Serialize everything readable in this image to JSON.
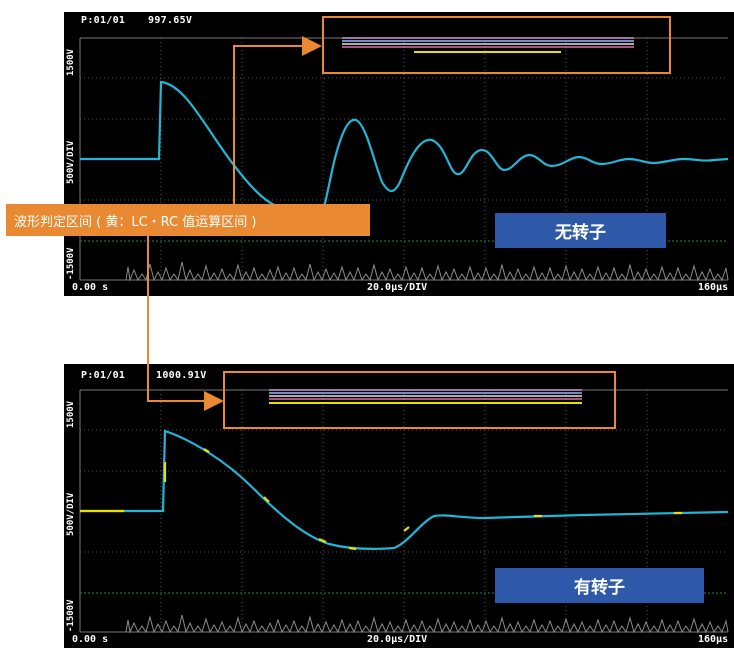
{
  "scope_top": {
    "page": "P:01/01",
    "voltage": "997.65V",
    "scale_top": "1500V",
    "scale_mid": "500V/DIV",
    "scale_bottom": "-1500V",
    "time_start": "0.00 s",
    "time_div": "20.0µs/DIV",
    "time_end": "160µs",
    "badge": "无转子"
  },
  "scope_bottom": {
    "page": "P:01/01",
    "voltage": "1000.91V",
    "scale_top": "1500V",
    "scale_mid": "500V/DIV",
    "scale_bottom": "-1500V",
    "time_start": "0.00 s",
    "time_div": "20.0µs/DIV",
    "time_end": "160µs",
    "badge": "有转子"
  },
  "callout": {
    "label": "波形判定区间 ( 黄：LC・RC 值运算区间 )"
  },
  "colors": {
    "waveform": "#22b5d6",
    "highlight": "#e8e000",
    "accent": "#e98a33",
    "badge": "#2e59a8"
  }
}
